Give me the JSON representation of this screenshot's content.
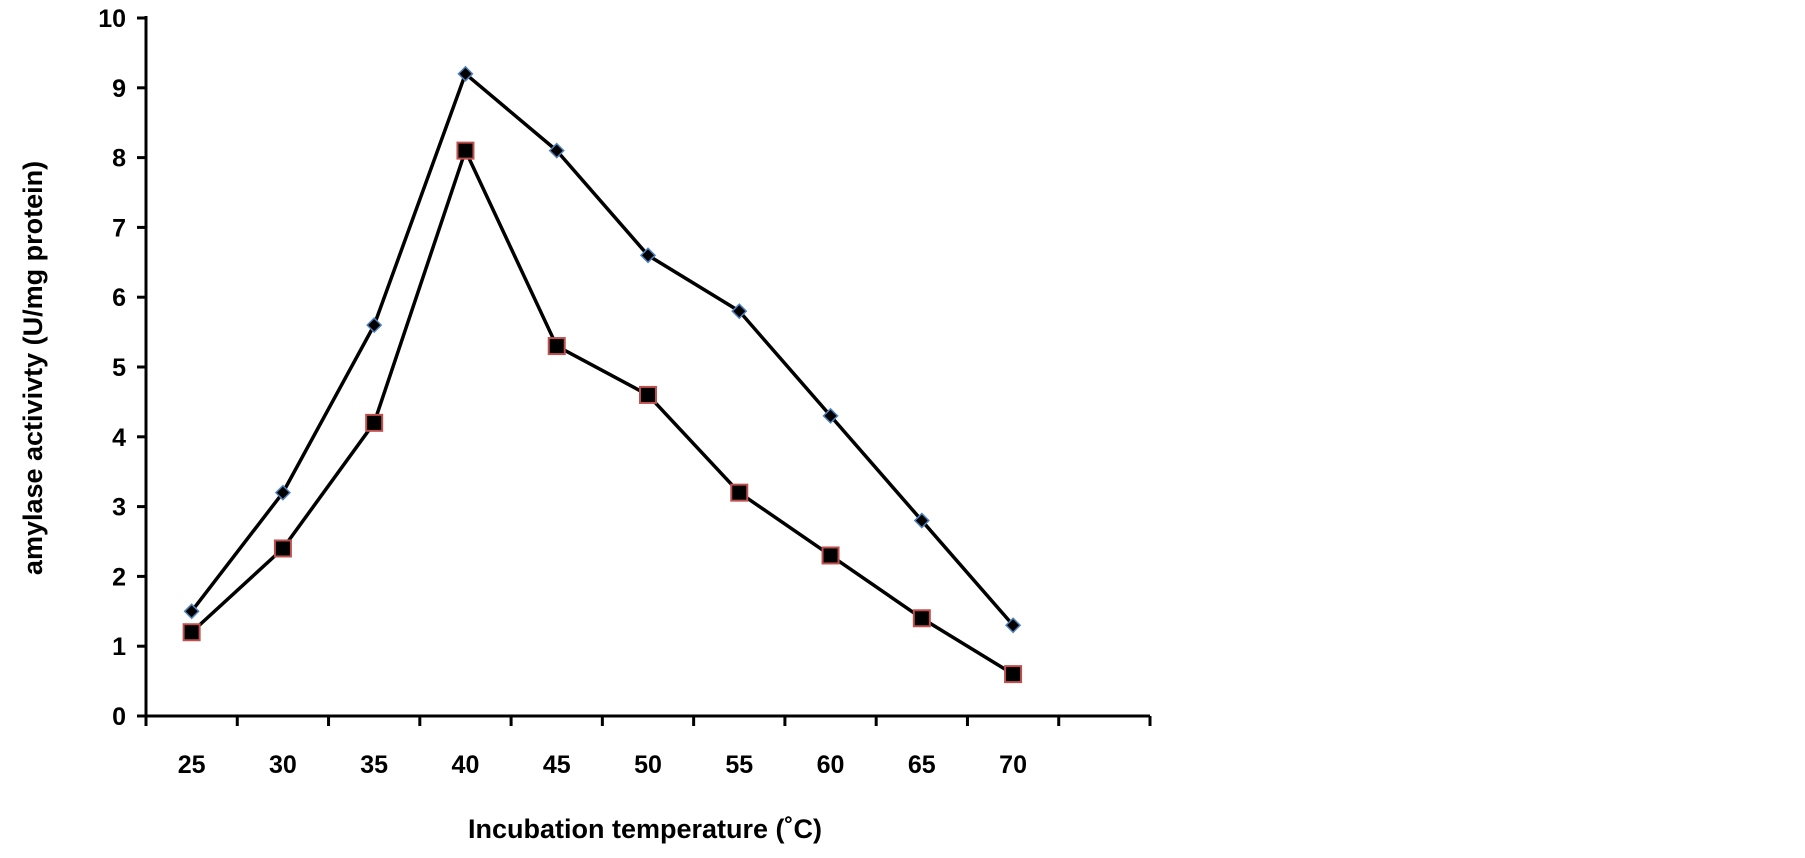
{
  "chart_data": {
    "type": "line",
    "title": "",
    "xlabel": "Incubation temperature (˚C)",
    "ylabel": "amylase activivty (U/mg protein)",
    "categories": [
      "25",
      "30",
      "35",
      "40",
      "45",
      "50",
      "55",
      "60",
      "65",
      "70"
    ],
    "x": [
      25,
      30,
      35,
      40,
      45,
      50,
      55,
      60,
      65,
      70
    ],
    "ylim": [
      0,
      10
    ],
    "yticks": [
      "0",
      "1",
      "2",
      "3",
      "4",
      "5",
      "6",
      "7",
      "8",
      "9",
      "10"
    ],
    "grid": false,
    "legend": "none",
    "series": [
      {
        "marker": "diamond",
        "line_color": "#000000",
        "marker_fill": "#000000",
        "marker_edge": "#4f81bd",
        "values": [
          1.5,
          3.2,
          5.6,
          9.2,
          8.1,
          6.6,
          5.8,
          4.3,
          2.8,
          1.3
        ]
      },
      {
        "marker": "square",
        "line_color": "#000000",
        "marker_fill": "#000000",
        "marker_edge": "#c0504d",
        "values": [
          1.2,
          2.4,
          4.2,
          8.1,
          5.3,
          4.6,
          3.2,
          2.3,
          1.4,
          0.6
        ]
      }
    ]
  }
}
